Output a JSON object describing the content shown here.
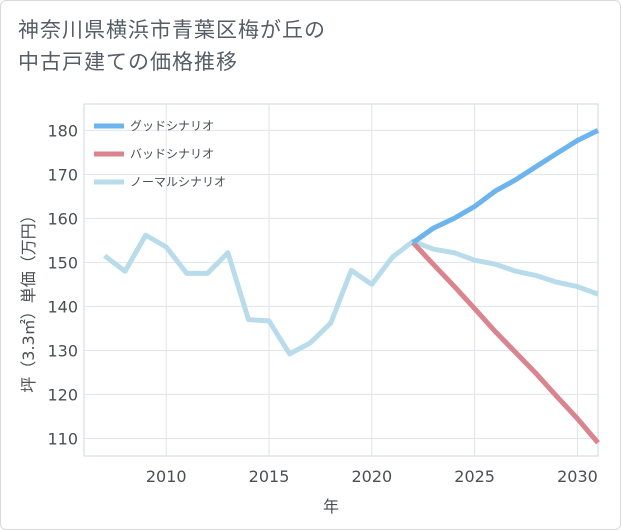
{
  "title_lines": [
    "神奈川県横浜市青葉区梅が丘の",
    "中古戸建ての価格推移"
  ],
  "chart_data": {
    "type": "line",
    "title": "神奈川県横浜市青葉区梅が丘の中古戸建ての価格推移",
    "xlabel": "年",
    "ylabel": "坪（3.3㎡）単価（万円）",
    "xlim": [
      2006,
      2031
    ],
    "ylim": [
      106,
      186
    ],
    "x_ticks": [
      2010,
      2015,
      2020,
      2025,
      2030
    ],
    "y_ticks": [
      110,
      120,
      130,
      140,
      150,
      160,
      170,
      180
    ],
    "x_tick_labels": [
      "2010",
      "2015",
      "2020",
      "2025",
      "2030"
    ],
    "y_tick_labels": [
      "110",
      "120",
      "130",
      "140",
      "150",
      "160",
      "170",
      "180"
    ],
    "legend_position": "top-left",
    "series": [
      {
        "name": "グッドシナリオ",
        "color": "#6cb4ee",
        "x": [
          2022,
          2023,
          2024,
          2025,
          2026,
          2027,
          2028,
          2029,
          2030,
          2031
        ],
        "values": [
          154.5,
          157.8,
          160.0,
          162.7,
          166.2,
          168.8,
          171.8,
          174.8,
          177.7,
          180.0
        ]
      },
      {
        "name": "バッドシナリオ",
        "color": "#d9848e",
        "x": [
          2022,
          2023,
          2024,
          2025,
          2026,
          2027,
          2028,
          2029,
          2030,
          2031
        ],
        "values": [
          154.5,
          149.5,
          144.6,
          139.5,
          134.3,
          129.5,
          124.7,
          119.5,
          114.5,
          109.0
        ]
      },
      {
        "name": "ノーマルシナリオ",
        "color": "#b9dcea",
        "x": [
          2007,
          2008,
          2009,
          2010,
          2011,
          2012,
          2013,
          2014,
          2015,
          2016,
          2017,
          2018,
          2019,
          2020,
          2021,
          2022,
          2023,
          2024,
          2025,
          2026,
          2027,
          2028,
          2029,
          2030,
          2031
        ],
        "values": [
          151.5,
          148.0,
          156.2,
          153.5,
          147.5,
          147.5,
          152.2,
          137.0,
          136.7,
          129.2,
          131.7,
          136.2,
          148.2,
          145.0,
          151.2,
          154.8,
          153.0,
          152.2,
          150.5,
          149.6,
          148.0,
          147.0,
          145.5,
          144.5,
          142.8
        ]
      }
    ]
  }
}
